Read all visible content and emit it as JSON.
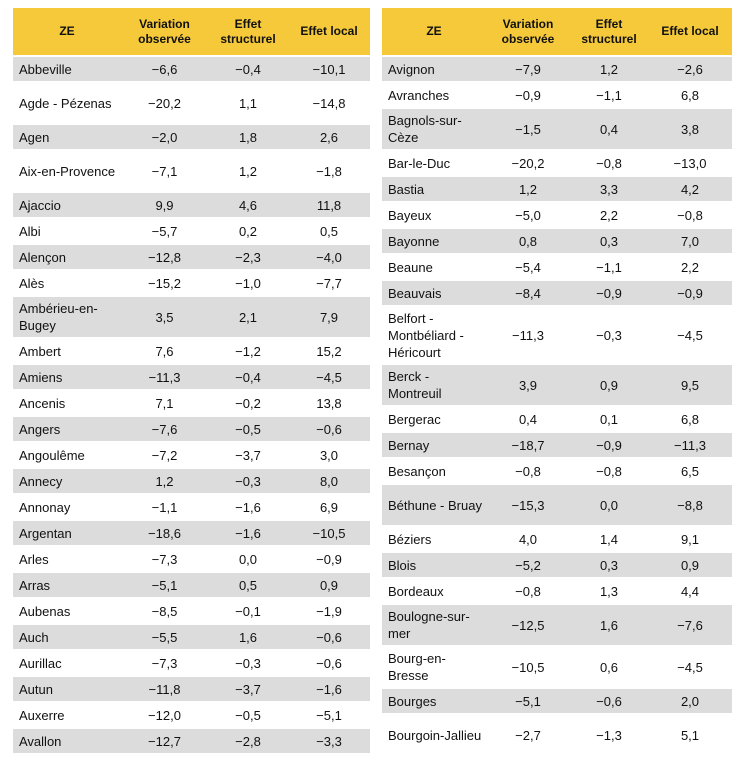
{
  "headers": [
    "ZE",
    "Variation observée",
    "Effet structurel",
    "Effet local"
  ],
  "left_rows": [
    [
      "Abbeville",
      "−6,6",
      "−0,4",
      "−10,1"
    ],
    [
      "Agde - Pézenas",
      "−20,2",
      "1,1",
      "−14,8"
    ],
    [
      "Agen",
      "−2,0",
      "1,8",
      "2,6"
    ],
    [
      "Aix-en-Provence",
      "−7,1",
      "1,2",
      "−1,8"
    ],
    [
      "Ajaccio",
      "9,9",
      "4,6",
      "11,8"
    ],
    [
      "Albi",
      "−5,7",
      "0,2",
      "0,5"
    ],
    [
      "Alençon",
      "−12,8",
      "−2,3",
      "−4,0"
    ],
    [
      "Alès",
      "−15,2",
      "−1,0",
      "−7,7"
    ],
    [
      "Ambérieu-en-Bugey",
      "3,5",
      "2,1",
      "7,9"
    ],
    [
      "Ambert",
      "7,6",
      "−1,2",
      "15,2"
    ],
    [
      "Amiens",
      "−11,3",
      "−0,4",
      "−4,5"
    ],
    [
      "Ancenis",
      "7,1",
      "−0,2",
      "13,8"
    ],
    [
      "Angers",
      "−7,6",
      "−0,5",
      "−0,6"
    ],
    [
      "Angoulême",
      "−7,2",
      "−3,7",
      "3,0"
    ],
    [
      "Annecy",
      "1,2",
      "−0,3",
      "8,0"
    ],
    [
      "Annonay",
      "−1,1",
      "−1,6",
      "6,9"
    ],
    [
      "Argentan",
      "−18,6",
      "−1,6",
      "−10,5"
    ],
    [
      "Arles",
      "−7,3",
      "0,0",
      "−0,9"
    ],
    [
      "Arras",
      "−5,1",
      "0,5",
      "0,9"
    ],
    [
      "Aubenas",
      "−8,5",
      "−0,1",
      "−1,9"
    ],
    [
      "Auch",
      "−5,5",
      "1,6",
      "−0,6"
    ],
    [
      "Aurillac",
      "−7,3",
      "−0,3",
      "−0,6"
    ],
    [
      "Autun",
      "−11,8",
      "−3,7",
      "−1,6"
    ],
    [
      "Auxerre",
      "−12,0",
      "−0,5",
      "−5,1"
    ],
    [
      "Avallon",
      "−12,7",
      "−2,8",
      "−3,3"
    ]
  ],
  "right_rows": [
    [
      "Avignon",
      "−7,9",
      "1,2",
      "−2,6"
    ],
    [
      "Avranches",
      "−0,9",
      "−1,1",
      "6,8"
    ],
    [
      "Bagnols-sur-Cèze",
      "−1,5",
      "0,4",
      "3,8"
    ],
    [
      "Bar-le-Duc",
      "−20,2",
      "−0,8",
      "−13,0"
    ],
    [
      "Bastia",
      "1,2",
      "3,3",
      "4,2"
    ],
    [
      "Bayeux",
      "−5,0",
      "2,2",
      "−0,8"
    ],
    [
      "Bayonne",
      "0,8",
      "0,3",
      "7,0"
    ],
    [
      "Beaune",
      "−5,4",
      "−1,1",
      "2,2"
    ],
    [
      "Beauvais",
      "−8,4",
      "−0,9",
      "−0,9"
    ],
    [
      "Belfort - Montbéliard - Héricourt",
      "−11,3",
      "−0,3",
      "−4,5"
    ],
    [
      "Berck - Montreuil",
      "3,9",
      "0,9",
      "9,5"
    ],
    [
      "Bergerac",
      "0,4",
      "0,1",
      "6,8"
    ],
    [
      "Bernay",
      "−18,7",
      "−0,9",
      "−11,3"
    ],
    [
      "Besançon",
      "−0,8",
      "−0,8",
      "6,5"
    ],
    [
      "Béthune - Bruay",
      "−15,3",
      "0,0",
      "−8,8"
    ],
    [
      "Béziers",
      "4,0",
      "1,4",
      "9,1"
    ],
    [
      "Blois",
      "−5,2",
      "0,3",
      "0,9"
    ],
    [
      "Bordeaux",
      "−0,8",
      "1,3",
      "4,4"
    ],
    [
      "Boulogne-sur-mer",
      "−12,5",
      "1,6",
      "−7,6"
    ],
    [
      "Bourg-en-Bresse",
      "−10,5",
      "0,6",
      "−4,5"
    ],
    [
      "Bourges",
      "−5,1",
      "−0,6",
      "2,0"
    ],
    [
      "Bourgoin-Jallieu",
      "−2,7",
      "−1,3",
      "5,1"
    ]
  ]
}
